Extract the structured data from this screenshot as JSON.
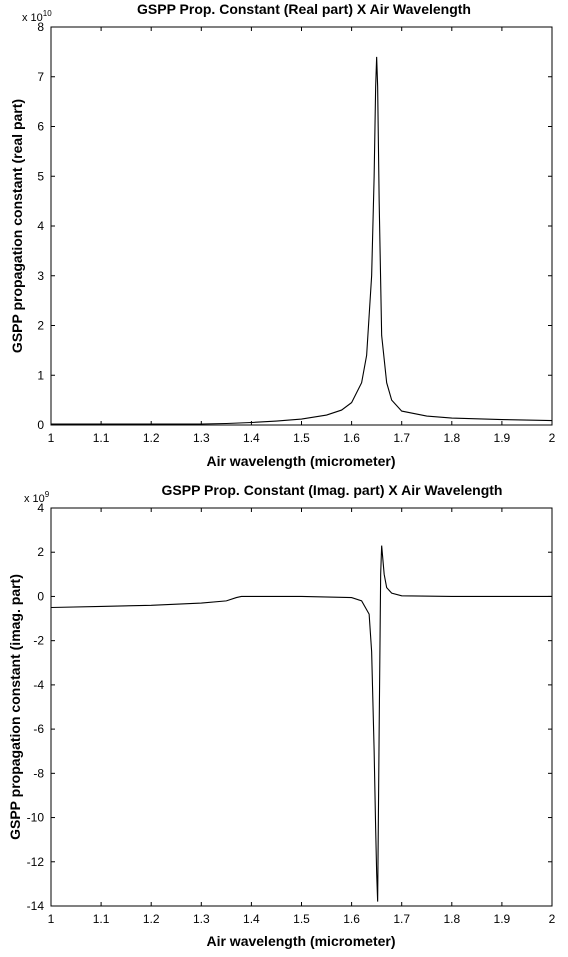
{
  "chart_data": [
    {
      "type": "line",
      "title": "GSPP Prop. Constant (Real part) X Air Wavelength",
      "xlabel": "Air wavelength (micrometer)",
      "ylabel": "GSPP propagation constant (real part)",
      "y_multiplier": "x 10",
      "y_exponent": "10",
      "xlim": [
        1,
        2
      ],
      "ylim": [
        0,
        8
      ],
      "xticks": [
        1,
        1.1,
        1.2,
        1.3,
        1.4,
        1.5,
        1.6,
        1.7,
        1.8,
        1.9,
        2
      ],
      "yticks": [
        0,
        1,
        2,
        3,
        4,
        5,
        6,
        7,
        8
      ],
      "xtick_labels": [
        "1",
        "1.1",
        "1.2",
        "1.3",
        "1.4",
        "1.5",
        "1.6",
        "1.7",
        "1.8",
        "1.9",
        "2"
      ],
      "ytick_labels": [
        "0",
        "1",
        "2",
        "3",
        "4",
        "5",
        "6",
        "7",
        "8"
      ],
      "grid": false,
      "series": [
        {
          "x": [
            1.0,
            1.1,
            1.2,
            1.3,
            1.35,
            1.4,
            1.45,
            1.5,
            1.55,
            1.58,
            1.6,
            1.62,
            1.63,
            1.64,
            1.645,
            1.648,
            1.65,
            1.652,
            1.655,
            1.66,
            1.67,
            1.68,
            1.7,
            1.75,
            1.8,
            1.9,
            2.0
          ],
          "y": [
            0.02,
            0.02,
            0.02,
            0.02,
            0.03,
            0.05,
            0.08,
            0.12,
            0.2,
            0.3,
            0.45,
            0.85,
            1.4,
            3.0,
            5.0,
            6.8,
            7.4,
            6.8,
            4.5,
            1.8,
            0.85,
            0.5,
            0.28,
            0.18,
            0.14,
            0.11,
            0.09
          ]
        }
      ]
    },
    {
      "type": "line",
      "title": "GSPP Prop. Constant (Imag. part) X Air Wavelength",
      "xlabel": "Air wavelength (micrometer)",
      "ylabel": "GSPP propagation constant (imag. part)",
      "y_multiplier": "x 10",
      "y_exponent": "9",
      "xlim": [
        1,
        2
      ],
      "ylim": [
        -14,
        4
      ],
      "xticks": [
        1,
        1.1,
        1.2,
        1.3,
        1.4,
        1.5,
        1.6,
        1.7,
        1.8,
        1.9,
        2
      ],
      "yticks": [
        -14,
        -12,
        -10,
        -8,
        -6,
        -4,
        -2,
        0,
        2,
        4
      ],
      "xtick_labels": [
        "1",
        "1.1",
        "1.2",
        "1.3",
        "1.4",
        "1.5",
        "1.6",
        "1.7",
        "1.8",
        "1.9",
        "2"
      ],
      "ytick_labels": [
        "-14",
        "-12",
        "-10",
        "-8",
        "-6",
        "-4",
        "-2",
        "0",
        "2",
        "4"
      ],
      "grid": false,
      "series": [
        {
          "x": [
            1.0,
            1.1,
            1.2,
            1.3,
            1.35,
            1.37,
            1.38,
            1.4,
            1.5,
            1.6,
            1.62,
            1.635,
            1.64,
            1.645,
            1.648,
            1.65,
            1.652,
            1.655,
            1.658,
            1.66,
            1.665,
            1.67,
            1.68,
            1.7,
            1.8,
            1.9,
            2.0
          ],
          "y": [
            -0.5,
            -0.45,
            -0.4,
            -0.3,
            -0.2,
            -0.05,
            0.0,
            0.0,
            0.0,
            -0.05,
            -0.2,
            -0.8,
            -2.5,
            -7.0,
            -10.5,
            -12.5,
            -13.8,
            -6.0,
            1.0,
            2.3,
            1.0,
            0.4,
            0.15,
            0.03,
            0.0,
            0.0,
            0.0
          ]
        }
      ]
    }
  ]
}
